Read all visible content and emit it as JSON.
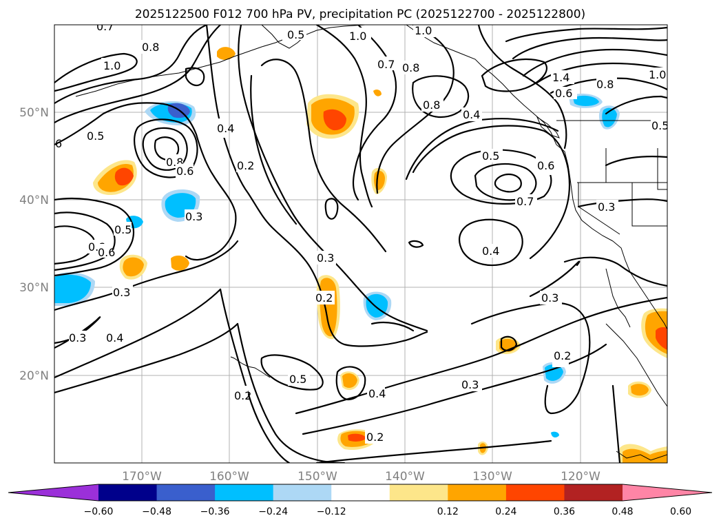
{
  "title": "2025122500 F012 700 hPa PV, precipitation PC (2025122700 - 2025122800)",
  "colors": {
    "purple": "#9b30d9",
    "navy": "#00008b",
    "royal_blue": "#3a5fcd",
    "deep_sky_blue": "#00bfff",
    "light_blue": "#add8f5",
    "white": "#ffffff",
    "light_yellow": "#fde68a",
    "orange": "#ffa500",
    "orange_red": "#ff4500",
    "firebrick": "#b22222",
    "pink": "#ff85a6"
  },
  "axes": {
    "lat_labels": [
      "50°N",
      "40°N",
      "30°N",
      "20°N"
    ],
    "lon_labels": [
      "170°W",
      "160°W",
      "150°W",
      "140°W",
      "130°W",
      "120°W"
    ]
  },
  "colorbar": {
    "tick_labels": [
      "−0.60",
      "−0.48",
      "−0.36",
      "−0.24",
      "−0.12",
      "0.12",
      "0.24",
      "0.36",
      "0.48",
      "0.60"
    ]
  },
  "contour_labels": [
    "1.0",
    "0.8",
    "0.7",
    "0.6",
    "0.5",
    "0.4",
    "0.3",
    "0.2",
    "1.4"
  ]
}
